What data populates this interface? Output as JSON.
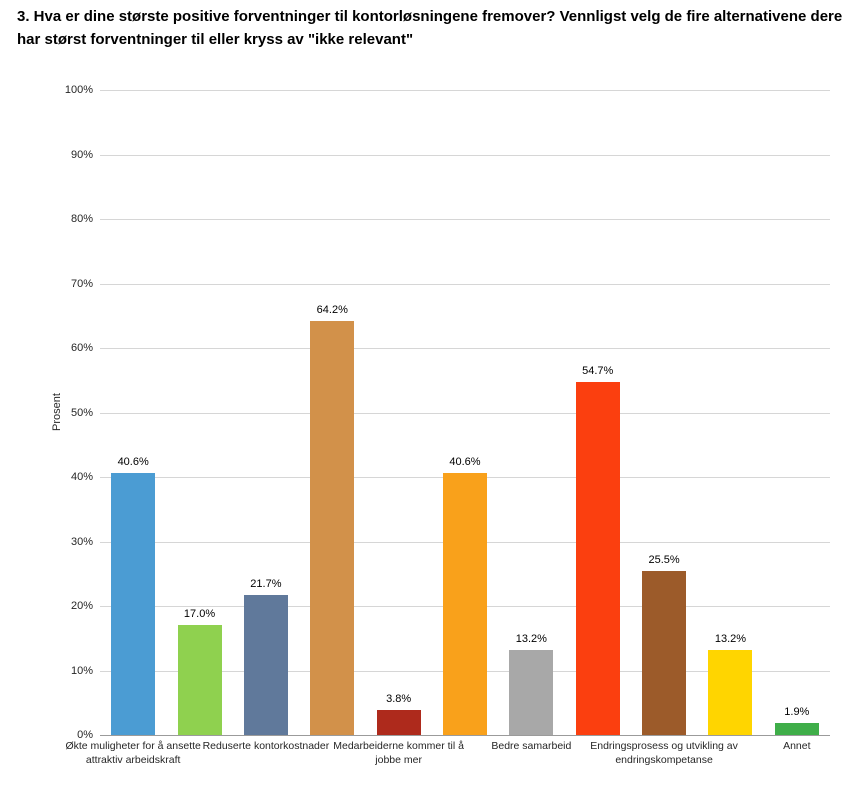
{
  "title": "3. Hva er dine største positive forventninger til kontorløsningene fremover? Vennligst velg de fire alternativene dere har størst forventninger til eller kryss av \"ikke relevant\"",
  "chart_data": {
    "type": "bar",
    "title": "3. Hva er dine største positive forventninger til kontorløsningene fremover? Vennligst velg de fire alternativene dere har størst forventninger til eller kryss av \"ikke relevant\"",
    "xlabel": "",
    "ylabel": "Prosent",
    "ylim": [
      0,
      100
    ],
    "yticks": [
      "0%",
      "10%",
      "20%",
      "30%",
      "40%",
      "50%",
      "60%",
      "70%",
      "80%",
      "90%",
      "100%"
    ],
    "grid": true,
    "legend": false,
    "values": [
      40.6,
      17.0,
      21.7,
      64.2,
      3.8,
      40.6,
      13.2,
      54.7,
      25.5,
      13.2,
      1.9
    ],
    "value_labels": [
      "40.6%",
      "17.0%",
      "21.7%",
      "64.2%",
      "3.8%",
      "40.6%",
      "13.2%",
      "54.7%",
      "25.5%",
      "13.2%",
      "1.9%"
    ],
    "bar_colors": [
      "#4B9CD3",
      "#8FD14F",
      "#60799B",
      "#D2914A",
      "#AE2A1C",
      "#F9A11B",
      "#A8A8A8",
      "#FB3F0F",
      "#9C5B2A",
      "#FFD500",
      "#3FAE49"
    ],
    "x_tick_labels": [
      {
        "index": 0,
        "label": "Økte muligheter for å ansette attraktiv arbeidskraft"
      },
      {
        "index": 2,
        "label": "Reduserte kontorkostnader"
      },
      {
        "index": 4,
        "label": "Medarbeiderne kommer til å jobbe mer"
      },
      {
        "index": 6,
        "label": "Bedre samarbeid"
      },
      {
        "index": 8,
        "label": "Endringsprosess og utvikling av endringskompetanse"
      },
      {
        "index": 10,
        "label": "Annet"
      }
    ]
  }
}
